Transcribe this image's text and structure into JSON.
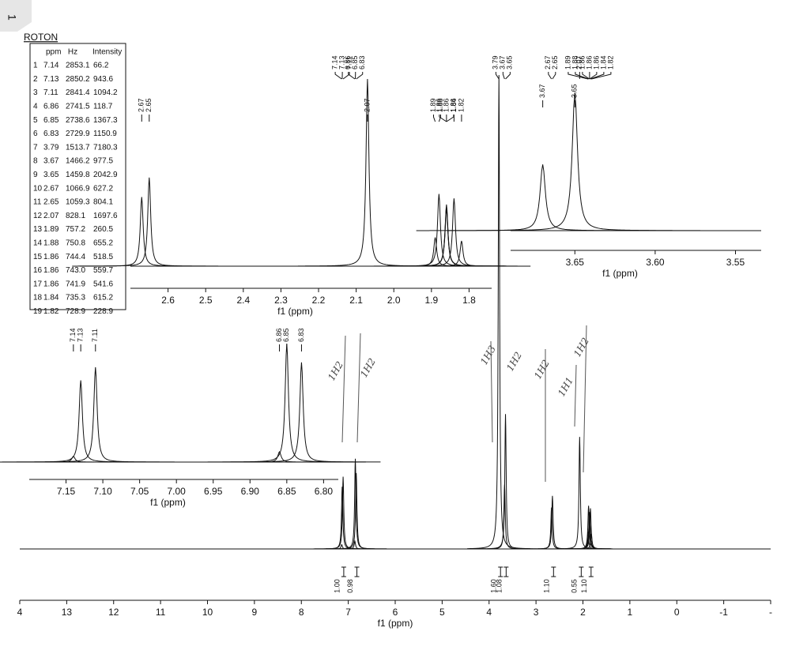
{
  "header": {
    "tab": "1",
    "label": "ROTON"
  },
  "peak_table": {
    "columns": [
      "ppm",
      "Hz",
      "Intensity"
    ],
    "rows": [
      [
        1,
        7.14,
        2853.1,
        66.2
      ],
      [
        2,
        7.13,
        2850.2,
        943.6
      ],
      [
        3,
        7.11,
        2841.4,
        1094.2
      ],
      [
        4,
        6.86,
        2741.5,
        118.7
      ],
      [
        5,
        6.85,
        2738.6,
        1367.3
      ],
      [
        6,
        6.83,
        2729.9,
        1150.9
      ],
      [
        7,
        3.79,
        1513.7,
        7180.3
      ],
      [
        8,
        3.67,
        1466.2,
        977.5
      ],
      [
        9,
        3.65,
        1459.8,
        2042.9
      ],
      [
        10,
        2.67,
        1066.9,
        627.2
      ],
      [
        11,
        2.65,
        1059.3,
        804.1
      ],
      [
        12,
        2.07,
        828.1,
        1697.6
      ],
      [
        13,
        1.89,
        757.2,
        260.5
      ],
      [
        14,
        1.88,
        750.8,
        655.2
      ],
      [
        15,
        1.86,
        744.4,
        518.5
      ],
      [
        16,
        1.86,
        "743.0",
        559.7
      ],
      [
        17,
        1.86,
        741.9,
        541.6
      ],
      [
        18,
        1.84,
        735.3,
        615.2
      ],
      [
        19,
        1.82,
        728.9,
        228.9
      ]
    ]
  },
  "chart_data": [
    {
      "type": "spectrum",
      "xlabel": "f1 (ppm)",
      "xlim": [
        14,
        -2
      ],
      "xticks": [
        {
          "value": 14,
          "label": "4"
        },
        13,
        12,
        11,
        10,
        9,
        8,
        7,
        6,
        5,
        4,
        3,
        2,
        1,
        0,
        -1,
        {
          "value": -2,
          "label": "-"
        }
      ],
      "peak_labels": [
        7.14,
        7.13,
        7.11,
        6.86,
        6.85,
        6.83,
        3.79,
        3.67,
        3.65,
        2.67,
        2.65,
        2.07,
        1.89,
        1.88,
        1.86,
        1.86,
        1.86,
        1.84,
        1.82
      ],
      "integrals": {
        "x": [
          7.13,
          6.85,
          3.79,
          3.67,
          2.66,
          2.07,
          1.86
        ],
        "values": [
          1,
          0.98,
          1.6,
          1.08,
          1.1,
          0.55,
          1.1
        ],
        "value_labels": [
          "1.00",
          "0.98",
          "1.60",
          "1.08",
          "1.10",
          "0.55",
          "1.10"
        ]
      },
      "annotations": [
        "1H2",
        "1H2",
        "1H3",
        "1H2",
        "1H2",
        "1H1",
        "1H2"
      ]
    },
    {
      "type": "spectrum",
      "xlabel": "f1 (ppm)",
      "xlim": [
        2.7,
        1.74
      ],
      "xticks": [
        2.6,
        2.5,
        2.4,
        2.3,
        2.2,
        2.1,
        {
          "value": 2,
          "label": "2.0"
        },
        1.9,
        1.8
      ],
      "peak_labels": [
        2.67,
        2.65,
        2.07,
        1.89,
        1.88,
        1.86,
        1.86,
        1.86,
        1.84,
        1.82
      ]
    },
    {
      "type": "spectrum",
      "xlabel": "f1 (ppm)",
      "xlim": [
        7.2,
        6.78
      ],
      "xticks": [
        7.15,
        {
          "value": 7.1,
          "label": "7.10"
        },
        7.05,
        {
          "value": 7,
          "label": "7.00"
        },
        6.95,
        {
          "value": 6.9,
          "label": "6.90"
        },
        6.85,
        {
          "value": 6.8,
          "label": "6.80"
        }
      ],
      "peak_labels": [
        7.14,
        7.13,
        7.11,
        6.86,
        6.85,
        6.83
      ]
    },
    {
      "type": "spectrum",
      "xlabel": "f1 (ppm)",
      "xlim": [
        3.69,
        3.534
      ],
      "xticks": [
        3.65,
        {
          "value": 3.6,
          "label": "3.60"
        },
        3.55
      ],
      "peak_labels": [
        3.67,
        3.65
      ]
    }
  ]
}
